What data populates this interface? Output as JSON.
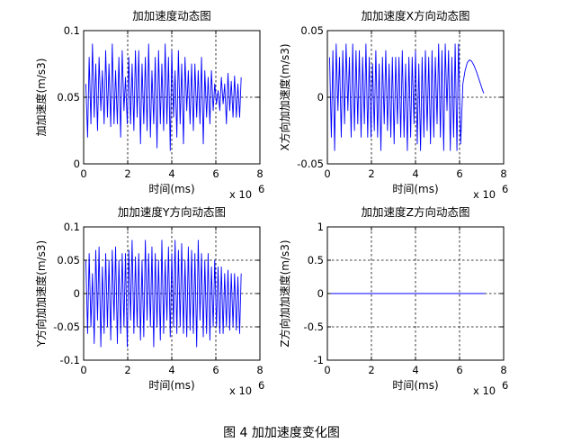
{
  "caption": "图 4  加加速度变化图",
  "chart_data": [
    {
      "type": "line",
      "title": "加加速度动态图",
      "xlabel": "时间(ms)",
      "ylabel": "加加速度(m/s3)",
      "x_exponent": "x 10",
      "x_exponent_power": "6",
      "xlim": [
        0,
        8
      ],
      "ylim": [
        0,
        0.1
      ],
      "xticks": [
        0,
        2,
        4,
        6,
        8
      ],
      "xtick_labels": [
        "0",
        "2",
        "4",
        "6",
        "8"
      ],
      "yticks": [
        0,
        0.05,
        0.1
      ],
      "ytick_labels": [
        "0",
        "0.05",
        "0.1"
      ],
      "grid": true,
      "line_color": "#0000ff",
      "series": [
        {
          "x": [
            0.1,
            0.18,
            0.25,
            0.33,
            0.4,
            0.48,
            0.55,
            0.63,
            0.7,
            0.78,
            0.85,
            0.93,
            1.0,
            1.08,
            1.15,
            1.23,
            1.3,
            1.38,
            1.45,
            1.53,
            1.6,
            1.68,
            1.75,
            1.83,
            1.9,
            1.98,
            2.05,
            2.13,
            2.2,
            2.28,
            2.35,
            2.43,
            2.5,
            2.58,
            2.65,
            2.73,
            2.8,
            2.88,
            2.95,
            3.03,
            3.1,
            3.18,
            3.25,
            3.33,
            3.4,
            3.48,
            3.55,
            3.63,
            3.7,
            3.78,
            3.85,
            3.93,
            4.0,
            4.08,
            4.15,
            4.23,
            4.3,
            4.38,
            4.45,
            4.53,
            4.6,
            4.68,
            4.75,
            4.83,
            4.9,
            4.98,
            5.05,
            5.13,
            5.2,
            5.28,
            5.35,
            5.43,
            5.5,
            5.58,
            5.65,
            5.73,
            5.8,
            5.88,
            5.95,
            6.03,
            6.1,
            6.18,
            6.25,
            6.33,
            6.4,
            6.48,
            6.55,
            6.63,
            6.7,
            6.78,
            6.85,
            6.93,
            7.0,
            7.08,
            7.15
          ],
          "y": [
            0.06,
            0.02,
            0.08,
            0.03,
            0.09,
            0.035,
            0.075,
            0.025,
            0.08,
            0.04,
            0.07,
            0.03,
            0.085,
            0.035,
            0.075,
            0.028,
            0.09,
            0.03,
            0.07,
            0.03,
            0.08,
            0.02,
            0.085,
            0.04,
            0.065,
            0.03,
            0.08,
            0.03,
            0.075,
            0.025,
            0.085,
            0.035,
            0.085,
            0.015,
            0.075,
            0.03,
            0.08,
            0.025,
            0.09,
            0.02,
            0.07,
            0.03,
            0.08,
            0.012,
            0.085,
            0.03,
            0.075,
            0.025,
            0.09,
            0.03,
            0.08,
            0.01,
            0.085,
            0.035,
            0.07,
            0.02,
            0.085,
            0.03,
            0.075,
            0.015,
            0.08,
            0.04,
            0.07,
            0.03,
            0.075,
            0.025,
            0.075,
            0.035,
            0.07,
            0.03,
            0.08,
            0.015,
            0.07,
            0.035,
            0.065,
            0.03,
            0.07,
            0.04,
            0.06,
            0.045,
            0.055,
            0.04,
            0.065,
            0.045,
            0.06,
            0.03,
            0.068,
            0.04,
            0.062,
            0.035,
            0.066,
            0.035,
            0.06,
            0.035,
            0.065
          ]
        }
      ]
    },
    {
      "type": "line",
      "title": "加加速度X方向动态图",
      "xlabel": "时间(ms)",
      "ylabel": "X方向加加速度(m/s3)",
      "x_exponent": "x 10",
      "x_exponent_power": "6",
      "xlim": [
        0,
        8
      ],
      "ylim": [
        -0.05,
        0.05
      ],
      "xticks": [
        0,
        2,
        4,
        6,
        8
      ],
      "xtick_labels": [
        "0",
        "2",
        "4",
        "6",
        "8"
      ],
      "yticks": [
        -0.05,
        0,
        0.05
      ],
      "ytick_labels": [
        "-0.05",
        "0",
        "0.05"
      ],
      "grid": true,
      "line_color": "#0000ff",
      "series": [
        {
          "x": [
            0.1,
            0.18,
            0.25,
            0.33,
            0.4,
            0.48,
            0.55,
            0.63,
            0.7,
            0.78,
            0.85,
            0.93,
            1.0,
            1.08,
            1.15,
            1.23,
            1.3,
            1.38,
            1.45,
            1.53,
            1.6,
            1.68,
            1.75,
            1.83,
            1.9,
            1.98,
            2.05,
            2.13,
            2.2,
            2.28,
            2.35,
            2.43,
            2.5,
            2.58,
            2.65,
            2.73,
            2.8,
            2.88,
            2.95,
            3.03,
            3.1,
            3.18,
            3.25,
            3.33,
            3.4,
            3.48,
            3.55,
            3.63,
            3.7,
            3.78,
            3.85,
            3.93,
            4.0,
            4.08,
            4.15,
            4.23,
            4.3,
            4.38,
            4.45,
            4.53,
            4.6,
            4.68,
            4.75,
            4.83,
            4.9,
            4.98,
            5.05,
            5.13,
            5.2,
            5.28,
            5.35,
            5.43,
            5.5,
            5.58,
            5.65,
            5.73,
            5.8,
            5.88,
            5.95,
            6.05,
            6.15,
            6.25,
            6.35,
            6.45,
            6.55,
            6.65,
            6.75,
            6.85,
            6.95,
            7.05,
            7.1
          ],
          "y": [
            0.03,
            -0.03,
            0.035,
            -0.04,
            0.04,
            -0.01,
            0.03,
            -0.03,
            0.035,
            -0.02,
            0.04,
            -0.01,
            0.03,
            -0.03,
            0.04,
            -0.025,
            0.035,
            -0.02,
            0.035,
            -0.03,
            0.03,
            -0.02,
            0.04,
            -0.03,
            0.03,
            -0.03,
            0.025,
            -0.025,
            0.035,
            -0.03,
            0.025,
            -0.04,
            0.03,
            -0.02,
            0.035,
            -0.025,
            0.025,
            -0.03,
            0.03,
            -0.035,
            0.03,
            -0.02,
            0.03,
            -0.03,
            0.035,
            -0.03,
            0.025,
            -0.04,
            0.03,
            -0.03,
            0.03,
            -0.02,
            0.035,
            -0.035,
            0.025,
            -0.04,
            0.03,
            -0.03,
            0.035,
            -0.025,
            0.03,
            -0.035,
            0.035,
            -0.03,
            0.03,
            -0.02,
            0.04,
            -0.03,
            0.035,
            -0.04,
            0.04,
            -0.01,
            0.035,
            -0.04,
            0.03,
            -0.03,
            0.04,
            -0.04,
            0.04,
            -0.035,
            0.01,
            0.02,
            0.026,
            0.028,
            0.027,
            0.024,
            0.02,
            0.015,
            0.01,
            0.005,
            0.003
          ]
        }
      ]
    },
    {
      "type": "line",
      "title": "加加速度Y方向动态图",
      "xlabel": "时间(ms)",
      "ylabel": "Y方向加加速度(m/s3)",
      "x_exponent": "x 10",
      "x_exponent_power": "6",
      "xlim": [
        0,
        8
      ],
      "ylim": [
        -0.1,
        0.1
      ],
      "xticks": [
        0,
        2,
        4,
        6,
        8
      ],
      "xtick_labels": [
        "0",
        "2",
        "4",
        "6",
        "8"
      ],
      "yticks": [
        -0.1,
        -0.05,
        0,
        0.05,
        0.1
      ],
      "ytick_labels": [
        "-0.1",
        "-0.05",
        "0",
        "0.05",
        "0.1"
      ],
      "grid": true,
      "line_color": "#0000ff",
      "series": [
        {
          "x": [
            0.1,
            0.18,
            0.25,
            0.33,
            0.4,
            0.48,
            0.55,
            0.63,
            0.7,
            0.78,
            0.85,
            0.93,
            1.0,
            1.08,
            1.15,
            1.23,
            1.3,
            1.38,
            1.45,
            1.53,
            1.6,
            1.68,
            1.75,
            1.83,
            1.9,
            1.98,
            2.05,
            2.13,
            2.2,
            2.28,
            2.35,
            2.43,
            2.5,
            2.58,
            2.65,
            2.73,
            2.8,
            2.88,
            2.95,
            3.03,
            3.1,
            3.18,
            3.25,
            3.33,
            3.4,
            3.48,
            3.55,
            3.63,
            3.7,
            3.78,
            3.85,
            3.93,
            4.0,
            4.08,
            4.15,
            4.23,
            4.3,
            4.38,
            4.45,
            4.53,
            4.6,
            4.68,
            4.75,
            4.83,
            4.9,
            4.98,
            5.05,
            5.13,
            5.2,
            5.28,
            5.35,
            5.43,
            5.5,
            5.58,
            5.65,
            5.73,
            5.8,
            5.88,
            5.95,
            6.03,
            6.1,
            6.18,
            6.25,
            6.33,
            6.4,
            6.48,
            6.55,
            6.63,
            6.7,
            6.78,
            6.85,
            6.93,
            7.0,
            7.08,
            7.15
          ],
          "y": [
            0.05,
            -0.06,
            0.06,
            -0.05,
            0.03,
            -0.075,
            0.065,
            -0.04,
            0.07,
            -0.08,
            0.04,
            -0.06,
            0.06,
            -0.05,
            0.05,
            -0.07,
            0.065,
            -0.04,
            0.07,
            -0.075,
            0.05,
            -0.06,
            0.06,
            -0.05,
            0.06,
            -0.08,
            0.065,
            -0.04,
            0.08,
            -0.06,
            0.055,
            -0.05,
            0.06,
            -0.07,
            0.05,
            -0.065,
            0.08,
            -0.04,
            0.06,
            -0.05,
            0.07,
            -0.08,
            0.06,
            -0.05,
            0.05,
            -0.07,
            0.08,
            -0.06,
            0.05,
            -0.04,
            0.07,
            -0.065,
            0.06,
            -0.05,
            0.08,
            -0.06,
            0.065,
            -0.05,
            0.075,
            -0.06,
            0.05,
            -0.065,
            0.07,
            -0.055,
            0.065,
            -0.06,
            0.06,
            -0.08,
            0.08,
            -0.04,
            0.06,
            -0.065,
            0.05,
            -0.06,
            0.06,
            -0.07,
            0.04,
            -0.05,
            0.05,
            -0.05,
            0.04,
            -0.06,
            0.04,
            -0.06,
            0.03,
            -0.05,
            0.035,
            -0.055,
            0.03,
            -0.05,
            0.03,
            -0.055,
            0.025,
            -0.06,
            0.03
          ]
        }
      ]
    },
    {
      "type": "line",
      "title": "加加速度Z方向动态图",
      "xlabel": "时间(ms)",
      "ylabel": "Z方向加加速度(m/s3)",
      "x_exponent": "x 10",
      "x_exponent_power": "6",
      "xlim": [
        0,
        8
      ],
      "ylim": [
        -1,
        1
      ],
      "xticks": [
        0,
        2,
        4,
        6,
        8
      ],
      "xtick_labels": [
        "0",
        "2",
        "4",
        "6",
        "8"
      ],
      "yticks": [
        -1,
        -0.5,
        0,
        0.5,
        1
      ],
      "ytick_labels": [
        "-1",
        "-0.5",
        "0",
        "0.5",
        "1"
      ],
      "grid": true,
      "line_color": "#0000ff",
      "series": [
        {
          "x": [
            0.0,
            7.15
          ],
          "y": [
            0,
            0
          ]
        }
      ]
    }
  ]
}
